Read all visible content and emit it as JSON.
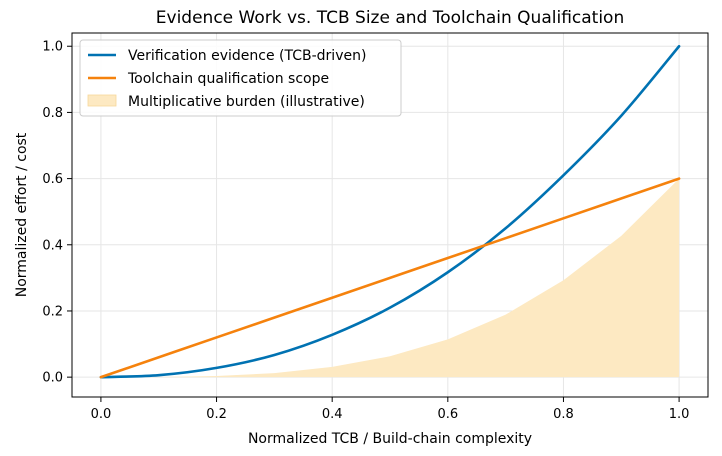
{
  "chart_data": {
    "type": "line",
    "title": "Evidence Work vs. TCB Size and Toolchain Qualification",
    "xlabel": "Normalized TCB / Build-chain complexity",
    "ylabel": "Normalized effort / cost",
    "xlim": [
      -0.05,
      1.05
    ],
    "ylim": [
      -0.06,
      1.04
    ],
    "xticks": [
      0.0,
      0.2,
      0.4,
      0.6,
      0.8,
      1.0
    ],
    "xtick_labels": [
      "0.0",
      "0.2",
      "0.4",
      "0.6",
      "0.8",
      "1.0"
    ],
    "yticks": [
      0.0,
      0.2,
      0.4,
      0.6,
      0.8,
      1.0
    ],
    "ytick_labels": [
      "0.0",
      "0.2",
      "0.4",
      "0.6",
      "0.8",
      "1.0"
    ],
    "grid": true,
    "legend_position": "top-left",
    "series": [
      {
        "name": "Verification evidence (TCB-driven)",
        "kind": "line",
        "color": "#0072b2",
        "x": [
          0.0,
          0.1,
          0.2,
          0.3,
          0.4,
          0.5,
          0.6,
          0.7,
          0.8,
          0.9,
          1.0
        ],
        "y": [
          0.0,
          0.006,
          0.028,
          0.067,
          0.128,
          0.21,
          0.317,
          0.45,
          0.61,
          0.79,
          1.0
        ]
      },
      {
        "name": "Toolchain qualification scope",
        "kind": "line",
        "color": "#f5820d",
        "x": [
          0.0,
          0.2,
          0.4,
          0.6,
          0.8,
          1.0
        ],
        "y": [
          0.0,
          0.12,
          0.24,
          0.36,
          0.48,
          0.6
        ]
      },
      {
        "name": "Multiplicative burden (illustrative)",
        "kind": "area",
        "color": "#fde9c2",
        "x": [
          0.0,
          0.1,
          0.2,
          0.3,
          0.4,
          0.5,
          0.6,
          0.7,
          0.8,
          0.9,
          1.0
        ],
        "y": [
          0.0,
          0.0004,
          0.0034,
          0.012,
          0.031,
          0.063,
          0.114,
          0.189,
          0.293,
          0.427,
          0.6
        ]
      }
    ]
  }
}
